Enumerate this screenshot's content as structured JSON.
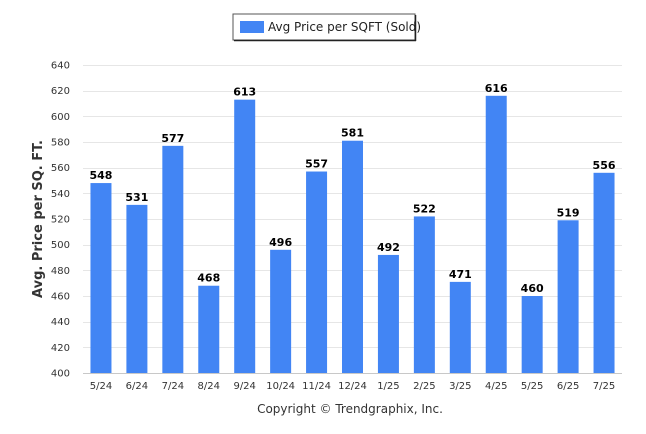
{
  "chart_data": {
    "type": "bar",
    "categories": [
      "5/24",
      "6/24",
      "7/24",
      "8/24",
      "9/24",
      "10/24",
      "11/24",
      "12/24",
      "1/25",
      "2/25",
      "3/25",
      "4/25",
      "5/25",
      "6/25",
      "7/25"
    ],
    "series": [
      {
        "name": "Avg Price per SQFT (Sold)",
        "values": [
          548,
          531,
          577,
          468,
          613,
          496,
          557,
          581,
          492,
          522,
          471,
          616,
          460,
          519,
          556
        ],
        "color": "#4285f4"
      }
    ],
    "title": "",
    "xlabel": "",
    "ylabel": "Avg. Price per SQ. FT.",
    "ylim": [
      400,
      640
    ],
    "yticks": [
      400,
      420,
      440,
      460,
      480,
      500,
      520,
      540,
      560,
      580,
      600,
      620,
      640
    ],
    "grid": true,
    "legend": "top-center",
    "data_labels": true
  },
  "footer": {
    "credit": "Copyright © Trendgraphix, Inc."
  }
}
